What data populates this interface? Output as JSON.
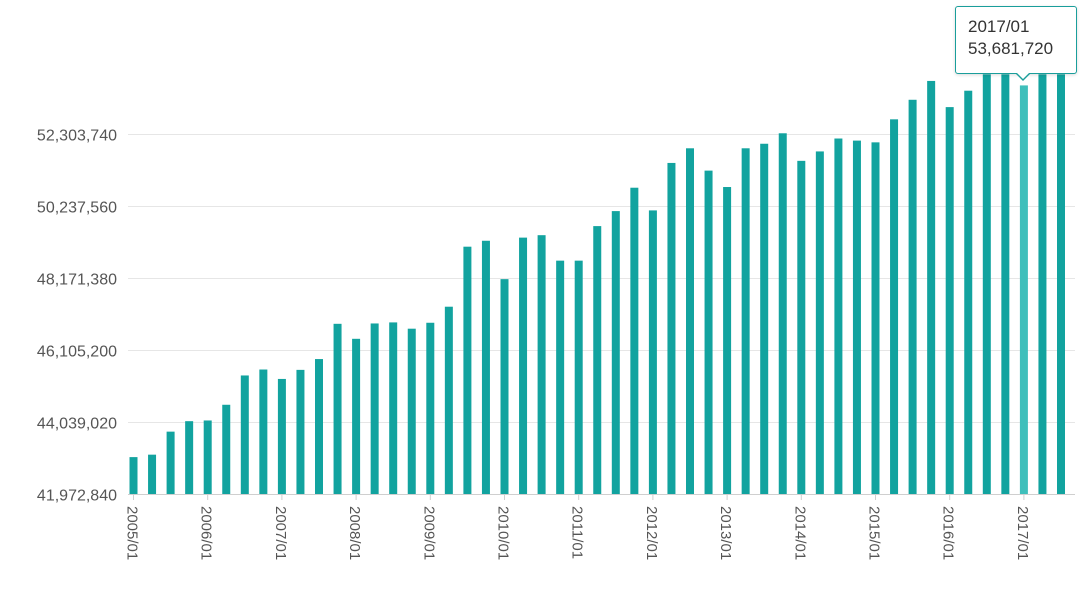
{
  "chart_data": {
    "type": "bar",
    "title": "",
    "xlabel": "",
    "ylabel": "",
    "ylim": [
      41972840,
      54000000
    ],
    "yticks": [
      "41,972,840",
      "44,039,020",
      "46,105,200",
      "48,171,380",
      "50,237,560",
      "52,303,740"
    ],
    "ytick_values": [
      41972840,
      44039020,
      46105200,
      48171380,
      50237560,
      52303740
    ],
    "xticks": [
      "2005/01",
      "2006/01",
      "2007/01",
      "2008/01",
      "2009/01",
      "2010/01",
      "2011/01",
      "2012/01",
      "2013/01",
      "2014/01",
      "2015/01",
      "2016/01",
      "2017/01"
    ],
    "grid": true,
    "bar_color": "#12a39f",
    "highlight_color": "#3fbfbb",
    "categories": [
      "2005/01",
      "2005/04",
      "2005/07",
      "2005/10",
      "2006/01",
      "2006/04",
      "2006/07",
      "2006/10",
      "2007/01",
      "2007/04",
      "2007/07",
      "2007/10",
      "2008/01",
      "2008/04",
      "2008/07",
      "2008/10",
      "2009/01",
      "2009/04",
      "2009/07",
      "2009/10",
      "2010/01",
      "2010/04",
      "2010/07",
      "2010/10",
      "2011/01",
      "2011/04",
      "2011/07",
      "2011/10",
      "2012/01",
      "2012/04",
      "2012/07",
      "2012/10",
      "2013/01",
      "2013/04",
      "2013/07",
      "2013/10",
      "2014/01",
      "2014/04",
      "2014/07",
      "2014/10",
      "2015/01",
      "2015/04",
      "2015/07",
      "2015/10",
      "2016/01",
      "2016/04",
      "2016/07",
      "2016/10",
      "2017/01",
      "2017/04",
      "2017/07"
    ],
    "values": [
      43030000,
      43100000,
      43760000,
      44060000,
      44080000,
      44530000,
      45370000,
      45540000,
      45270000,
      45530000,
      45840000,
      46850000,
      46420000,
      46860000,
      46890000,
      46710000,
      46880000,
      47340000,
      49060000,
      49230000,
      48130000,
      49320000,
      49390000,
      48660000,
      48660000,
      49650000,
      50080000,
      50750000,
      50100000,
      51460000,
      51880000,
      51240000,
      50770000,
      51880000,
      52010000,
      52310000,
      51520000,
      51790000,
      52160000,
      52100000,
      52050000,
      52710000,
      53270000,
      53810000,
      53060000,
      53530000,
      54000000,
      54000000,
      53681720,
      54000000,
      54000000
    ],
    "highlighted": "2017/01"
  },
  "tooltip": {
    "label": "2017/01",
    "value": "53,681,720"
  }
}
